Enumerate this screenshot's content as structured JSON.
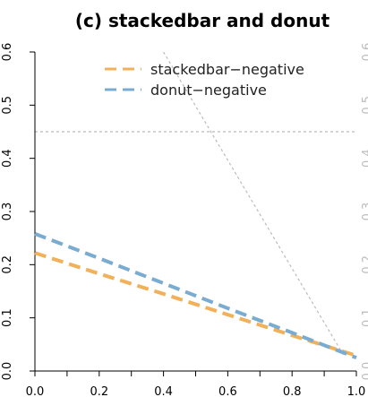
{
  "chart_data": {
    "type": "line",
    "title": "(c) stackedbar and donut",
    "xlabel": "",
    "ylabel": "",
    "xlim": [
      0.0,
      1.0
    ],
    "ylim": [
      0.0,
      0.6
    ],
    "x_ticks": [
      0.0,
      0.2,
      0.4,
      0.6,
      0.8,
      1.0
    ],
    "x_tick_labels": [
      "0.0",
      "0.2",
      "0.4",
      "0.6",
      "0.8",
      "1.0"
    ],
    "y_ticks": [
      0.0,
      0.1,
      0.2,
      0.3,
      0.4,
      0.5,
      0.6
    ],
    "y_tick_labels": [
      "0.0",
      "0.1",
      "0.2",
      "0.3",
      "0.4",
      "0.5",
      "0.6"
    ],
    "legend_position": "top-right",
    "series": [
      {
        "name": "stackedbar−negative",
        "color": "#f2b05a",
        "style": "dashed",
        "x": [
          0.0,
          0.2,
          0.4,
          0.6,
          0.8,
          1.0
        ],
        "y": [
          0.222,
          0.183,
          0.145,
          0.106,
          0.067,
          0.029
        ]
      },
      {
        "name": "donut−negative",
        "color": "#7aabd0",
        "style": "dashed",
        "x": [
          0.0,
          0.2,
          0.4,
          0.6,
          0.8,
          1.0
        ],
        "y": [
          0.258,
          0.212,
          0.165,
          0.118,
          0.072,
          0.025
        ]
      }
    ],
    "reference_lines": [
      {
        "type": "horizontal",
        "y": 0.45,
        "color": "#bbbbbb",
        "style": "dotted"
      },
      {
        "type": "segment",
        "x": [
          0.4,
          0.96
        ],
        "y": [
          0.6,
          0.03
        ],
        "color": "#bbbbbb",
        "style": "dotted"
      }
    ]
  }
}
